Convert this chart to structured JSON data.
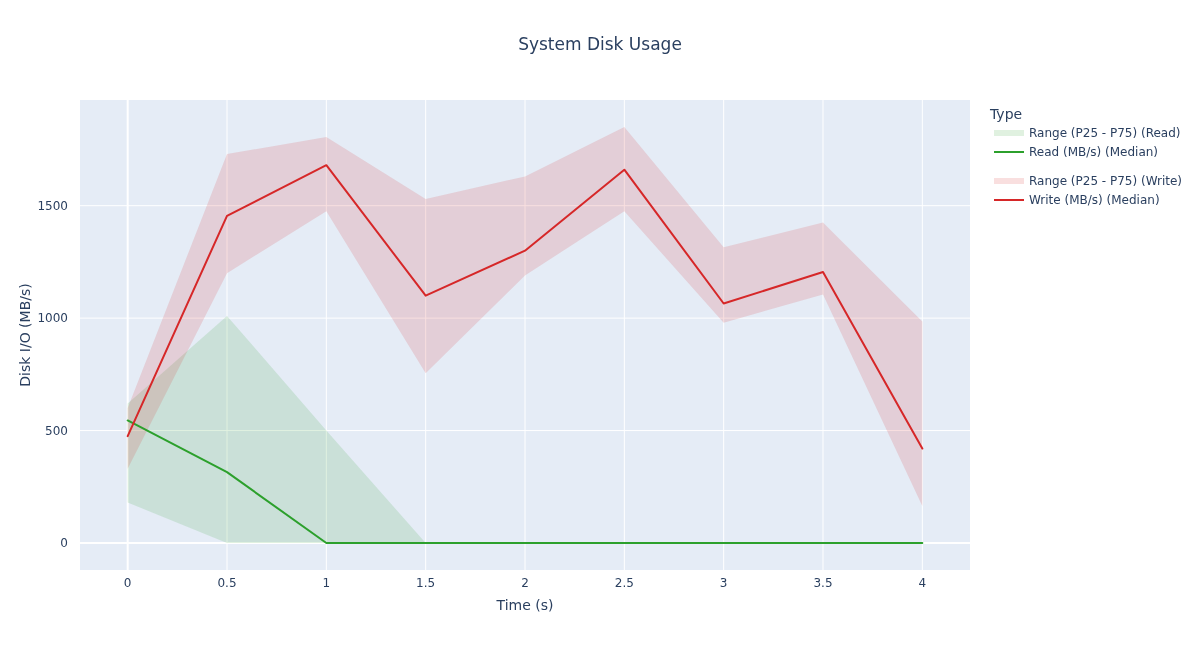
{
  "chart_data": {
    "type": "line",
    "title": "System Disk Usage",
    "xlabel": "Time (s)",
    "ylabel": "Disk I/O (MB/s)",
    "legend_title": "Type",
    "x": [
      0,
      0.5,
      1,
      1.5,
      2,
      2.5,
      3,
      3.5,
      4
    ],
    "series": [
      {
        "name": "Range (P25 - P75) (Read)",
        "type": "area",
        "color": "#2ca02c",
        "values": [
          null,
          null,
          null,
          null,
          null,
          null,
          null,
          null,
          null
        ],
        "lower": [
          180,
          0,
          0,
          0,
          0,
          0,
          0,
          0,
          0
        ],
        "upper": [
          620,
          1010,
          500,
          0,
          0,
          0,
          0,
          0,
          0
        ]
      },
      {
        "name": "Read (MB/s) (Median)",
        "color": "#2ca02c",
        "values": [
          545,
          315,
          0,
          0,
          0,
          0,
          0,
          0,
          0
        ]
      },
      {
        "name": "Range (P25 - P75) (Write)",
        "type": "area",
        "color": "#d62728",
        "values": [
          null,
          null,
          null,
          null,
          null,
          null,
          null,
          null,
          null
        ],
        "lower": [
          330,
          1200,
          1475,
          755,
          1190,
          1475,
          980,
          1105,
          165
        ],
        "upper": [
          600,
          1730,
          1805,
          1530,
          1630,
          1850,
          1315,
          1425,
          985
        ]
      },
      {
        "name": "Write (MB/s) (Median)",
        "color": "#d62728",
        "values": [
          475,
          1455,
          1680,
          1100,
          1300,
          1660,
          1065,
          1205,
          420
        ]
      }
    ],
    "xlim": [
      -0.24,
      4.24
    ],
    "ylim": [
      -120,
      1970
    ],
    "xticks": [
      0,
      0.5,
      1,
      1.5,
      2,
      2.5,
      3,
      3.5,
      4
    ],
    "yticks": [
      0,
      500,
      1000,
      1500
    ],
    "grid": true,
    "legend": "right"
  }
}
